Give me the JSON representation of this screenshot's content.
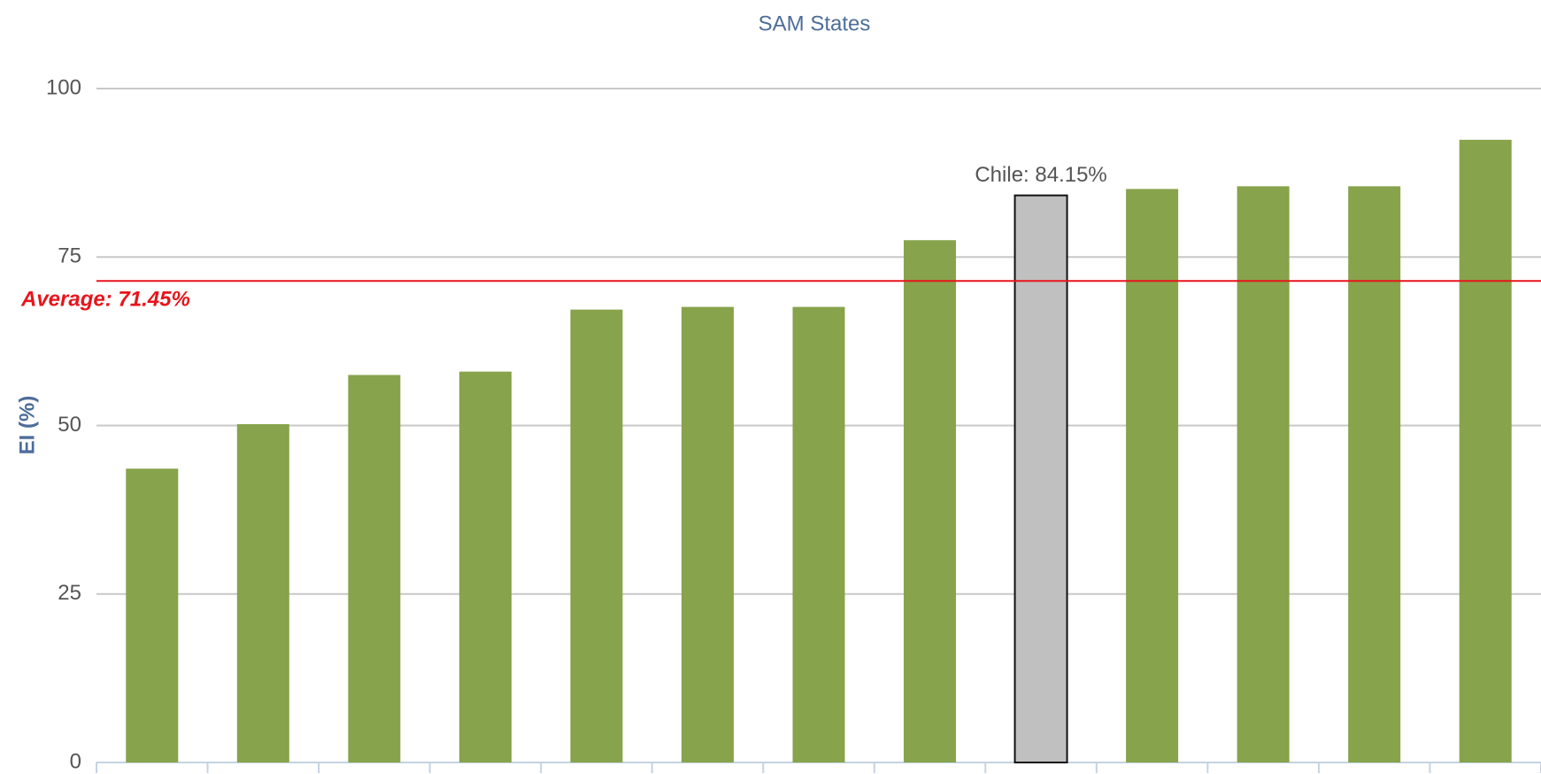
{
  "chart_data": {
    "type": "bar",
    "title": "SAM States",
    "y_label": "EI (%)",
    "categories": [
      null,
      null,
      null,
      null,
      null,
      null,
      null,
      null,
      null,
      null,
      null,
      null,
      null
    ],
    "values": [
      43.6,
      50.2,
      57.5,
      58.0,
      67.2,
      67.6,
      67.6,
      77.5,
      84.15,
      85.1,
      85.5,
      85.5,
      92.4
    ],
    "value_labels": [
      null,
      null,
      null,
      null,
      null,
      null,
      null,
      null,
      "Chile: 84.15%",
      null,
      null,
      null,
      null
    ],
    "colors": [
      "#87a34b",
      "#87a34b",
      "#87a34b",
      "#87a34b",
      "#87a34b",
      "#87a34b",
      "#87a34b",
      "#87a34b",
      "#c0c0c0",
      "#87a34b",
      "#87a34b",
      "#87a34b",
      "#87a34b"
    ],
    "average": {
      "value": 71.45,
      "label": "Average: 71.45%",
      "color": "#e8141b"
    },
    "ylim": [
      0,
      100
    ],
    "yticks": [
      0,
      25,
      50,
      75,
      100
    ],
    "grid": true
  }
}
